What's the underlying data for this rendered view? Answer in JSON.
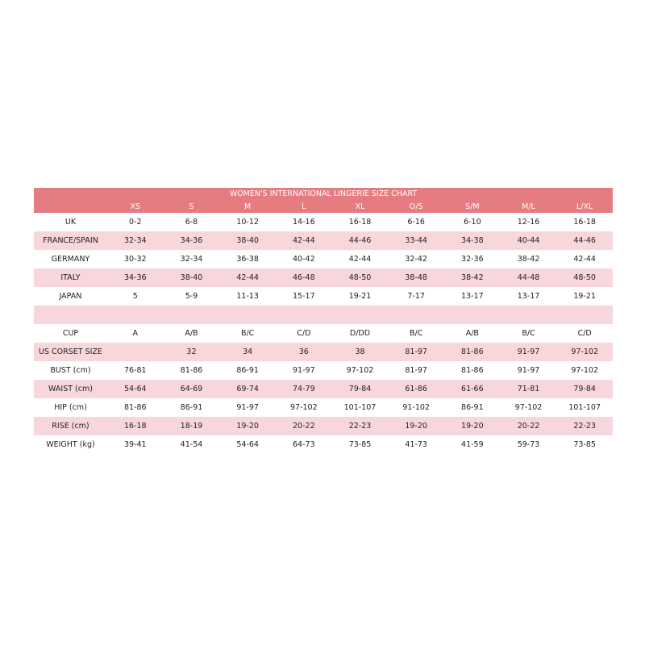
{
  "title": "WOMEN'S INTERNATIONAL LINGERIE SIZE CHART",
  "colors": {
    "header": "#E57C82",
    "alt_row": "#F8D7DC"
  },
  "sizes": [
    "XS",
    "S",
    "M",
    "L",
    "XL",
    "O/S",
    "S/M",
    "M/L",
    "L/XL"
  ],
  "rows": [
    {
      "label": "UK",
      "values": [
        "0-2",
        "6-8",
        "10-12",
        "14-16",
        "16-18",
        "6-16",
        "6-10",
        "12-16",
        "16-18"
      ]
    },
    {
      "label": "FRANCE/SPAIN",
      "values": [
        "32-34",
        "34-36",
        "38-40",
        "42-44",
        "44-46",
        "33-44",
        "34-38",
        "40-44",
        "44-46"
      ]
    },
    {
      "label": "GERMANY",
      "values": [
        "30-32",
        "32-34",
        "36-38",
        "40-42",
        "42-44",
        "32-42",
        "32-36",
        "38-42",
        "42-44"
      ]
    },
    {
      "label": "ITALY",
      "values": [
        "34-36",
        "38-40",
        "42-44",
        "46-48",
        "48-50",
        "38-48",
        "38-42",
        "44-48",
        "48-50"
      ]
    },
    {
      "label": "JAPAN",
      "values": [
        "5",
        "5-9",
        "11-13",
        "15-17",
        "19-21",
        "7-17",
        "13-17",
        "13-17",
        "19-21"
      ]
    },
    {
      "label": "",
      "values": [
        "",
        "",
        "",
        "",
        "",
        "",
        "",
        "",
        ""
      ]
    },
    {
      "label": "CUP",
      "values": [
        "A",
        "A/B",
        "B/C",
        "C/D",
        "D/DD",
        "B/C",
        "A/B",
        "B/C",
        "C/D"
      ]
    },
    {
      "label": "US CORSET SIZE",
      "values": [
        "",
        "32",
        "34",
        "36",
        "38",
        "81-97",
        "81-86",
        "91-97",
        "97-102"
      ]
    },
    {
      "label": "BUST (cm)",
      "values": [
        "76-81",
        "81-86",
        "86-91",
        "91-97",
        "97-102",
        "81-97",
        "81-86",
        "91-97",
        "97-102"
      ]
    },
    {
      "label": "WAIST (cm)",
      "values": [
        "54-64",
        "64-69",
        "69-74",
        "74-79",
        "79-84",
        "61-86",
        "61-66",
        "71-81",
        "79-84"
      ]
    },
    {
      "label": "HIP (cm)",
      "values": [
        "81-86",
        "86-91",
        "91-97",
        "97-102",
        "101-107",
        "91-102",
        "86-91",
        "97-102",
        "101-107"
      ]
    },
    {
      "label": "RISE (cm)",
      "values": [
        "16-18",
        "18-19",
        "19-20",
        "20-22",
        "22-23",
        "19-20",
        "19-20",
        "20-22",
        "22-23"
      ]
    },
    {
      "label": "WEIGHT (kg)",
      "values": [
        "39-41",
        "41-54",
        "54-64",
        "64-73",
        "73-85",
        "41-73",
        "41-59",
        "59-73",
        "73-85"
      ]
    }
  ]
}
